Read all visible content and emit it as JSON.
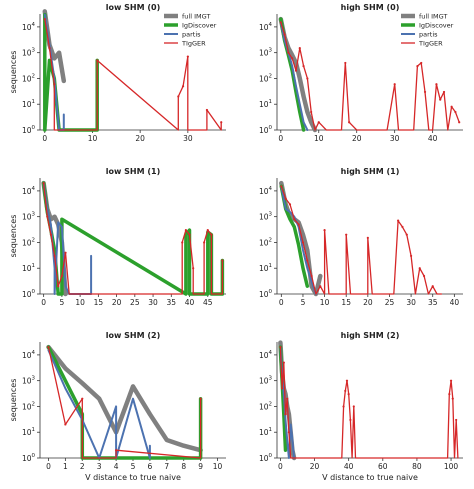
{
  "colors": {
    "full IMGT": "#808080",
    "IgDiscover": "#2ca02c",
    "partis": "#4c72b0",
    "TIgGER": "#d62728",
    "axis": "#333333",
    "background": "#ffffff"
  },
  "figure": {
    "xlabel": "V distance to true naive",
    "ylabel": "sequences",
    "legend_entries": [
      "full IMGT",
      "IgDiscover",
      "partis",
      "TIgGER"
    ]
  },
  "chart_data": [
    {
      "type": "line",
      "title": "low SHM (0)",
      "xlabel": "",
      "ylabel": "sequences",
      "xlim": [
        -1,
        38
      ],
      "ylim_exp": [
        0,
        4.5
      ],
      "xticks": [
        0,
        10,
        20,
        30
      ],
      "yticks": [
        "10^0",
        "10^1",
        "10^2",
        "10^3",
        "10^4"
      ],
      "yscale": "log",
      "legend": "top-right",
      "series": [
        {
          "name": "full IMGT",
          "x": [
            0,
            1,
            2,
            3,
            4
          ],
          "y": [
            40000,
            2000,
            600,
            1000,
            80
          ]
        },
        {
          "name": "IgDiscover",
          "x": [
            0,
            0,
            1,
            2,
            3,
            11,
            11
          ],
          "y": [
            30000,
            1,
            500,
            100,
            1,
            1,
            500
          ]
        },
        {
          "name": "partis",
          "x": [
            0,
            1,
            2,
            3,
            3,
            4,
            4
          ],
          "y": [
            30000,
            2000,
            100,
            1,
            1,
            1,
            4
          ]
        },
        {
          "name": "TIgGER",
          "x": [
            0,
            1,
            2,
            2,
            11,
            11,
            28,
            28,
            29,
            30,
            30,
            34,
            34,
            37,
            37
          ],
          "y": [
            20000,
            1500,
            60,
            1,
            1,
            500,
            1,
            20,
            50,
            700,
            1,
            1,
            6,
            1,
            2
          ]
        }
      ]
    },
    {
      "type": "line",
      "title": "high SHM (0)",
      "xlabel": "",
      "ylabel": "",
      "xlim": [
        -1,
        48
      ],
      "ylim_exp": [
        0,
        4.5
      ],
      "xticks": [
        0,
        10,
        20,
        30,
        40
      ],
      "yticks": [
        "10^0",
        "10^1",
        "10^2",
        "10^3",
        "10^4"
      ],
      "yscale": "log",
      "legend": "top-right",
      "series": [
        {
          "name": "full IMGT",
          "x": [
            0,
            1,
            2,
            3,
            4,
            5,
            6,
            7,
            8,
            9
          ],
          "y": [
            20000,
            4000,
            1500,
            800,
            400,
            100,
            20,
            5,
            2,
            1
          ]
        },
        {
          "name": "IgDiscover",
          "x": [
            0,
            1,
            2,
            3,
            4,
            5,
            6
          ],
          "y": [
            20000,
            3000,
            800,
            200,
            30,
            5,
            1
          ]
        },
        {
          "name": "partis",
          "x": [
            0,
            1,
            2,
            3,
            4,
            5,
            6,
            7
          ],
          "y": [
            15000,
            3000,
            1000,
            300,
            50,
            10,
            2,
            1
          ]
        },
        {
          "name": "TIgGER",
          "x": [
            0,
            1,
            2,
            3,
            4,
            5,
            6,
            7,
            8,
            9,
            10,
            12,
            13,
            14,
            16,
            17,
            18,
            20,
            22,
            25,
            28,
            30,
            31,
            32,
            35,
            36,
            37,
            38,
            39,
            40,
            41,
            42,
            43,
            44,
            45,
            46,
            47
          ],
          "y": [
            15000,
            5000,
            1000,
            600,
            200,
            1500,
            300,
            100,
            5,
            1,
            2,
            1,
            1,
            1,
            1,
            400,
            2,
            1,
            1,
            1,
            1,
            60,
            1,
            1,
            1,
            300,
            400,
            30,
            1,
            1,
            60,
            15,
            30,
            1,
            8,
            5,
            2
          ]
        }
      ]
    },
    {
      "type": "line",
      "title": "low SHM (1)",
      "xlabel": "",
      "ylabel": "sequences",
      "xlim": [
        -1,
        50
      ],
      "ylim_exp": [
        0,
        4.5
      ],
      "xticks": [
        0,
        5,
        10,
        15,
        20,
        25,
        30,
        35,
        40,
        45
      ],
      "yticks": [
        "10^0",
        "10^1",
        "10^2",
        "10^3",
        "10^4"
      ],
      "yscale": "log",
      "legend": "",
      "series": [
        {
          "name": "full IMGT",
          "x": [
            0,
            1,
            2,
            3,
            4,
            5,
            6
          ],
          "y": [
            20000,
            2000,
            800,
            1000,
            500,
            100,
            1
          ]
        },
        {
          "name": "IgDiscover",
          "x": [
            0,
            1,
            2,
            3,
            4,
            5,
            5,
            39,
            39,
            40,
            40,
            45,
            45,
            46,
            46,
            49,
            49
          ],
          "y": [
            20000,
            1500,
            300,
            50,
            1,
            1,
            800,
            1,
            200,
            300,
            1,
            1,
            250,
            200,
            1,
            1,
            20
          ]
        },
        {
          "name": "partis",
          "x": [
            0,
            1,
            2,
            3,
            3,
            4,
            5,
            6,
            7,
            8,
            9,
            13,
            13
          ],
          "y": [
            20000,
            2000,
            500,
            10,
            1,
            600,
            400,
            2,
            1,
            1,
            1,
            1,
            30
          ]
        },
        {
          "name": "TIgGER",
          "x": [
            0,
            1,
            2,
            3,
            4,
            5,
            6,
            7,
            7,
            30,
            30,
            38,
            38,
            39,
            40,
            41,
            41,
            44,
            44,
            45,
            46,
            46,
            49,
            49
          ],
          "y": [
            20000,
            1000,
            200,
            30,
            2,
            5,
            40,
            1,
            1,
            1,
            1,
            1,
            100,
            300,
            200,
            10,
            1,
            1,
            100,
            300,
            200,
            1,
            1,
            20
          ]
        }
      ]
    },
    {
      "type": "line",
      "title": "high SHM (1)",
      "xlabel": "",
      "ylabel": "",
      "xlim": [
        -1,
        42
      ],
      "ylim_exp": [
        0,
        4.5
      ],
      "xticks": [
        0,
        5,
        10,
        15,
        20,
        25,
        30,
        35,
        40
      ],
      "yticks": [
        "10^0",
        "10^1",
        "10^2",
        "10^3",
        "10^4"
      ],
      "yscale": "log",
      "legend": "",
      "series": [
        {
          "name": "full IMGT",
          "x": [
            0,
            1,
            2,
            3,
            4,
            5,
            6,
            7,
            8,
            9
          ],
          "y": [
            20000,
            3000,
            1000,
            800,
            600,
            200,
            50,
            2,
            1,
            5
          ]
        },
        {
          "name": "IgDiscover",
          "x": [
            0,
            1,
            2,
            3,
            4,
            5,
            6
          ],
          "y": [
            15000,
            2000,
            800,
            400,
            80,
            10,
            2
          ]
        },
        {
          "name": "partis",
          "x": [
            0,
            1,
            2,
            3,
            4,
            5,
            6,
            7,
            8
          ],
          "y": [
            15000,
            2000,
            1500,
            1000,
            400,
            50,
            10,
            3,
            1
          ]
        },
        {
          "name": "TIgGER",
          "x": [
            0,
            1,
            2,
            3,
            4,
            5,
            6,
            7,
            8,
            9,
            10,
            10,
            11,
            11,
            15,
            15,
            16,
            16,
            20,
            20,
            21,
            21,
            26,
            27,
            28,
            29,
            30,
            31,
            32,
            33,
            34,
            35,
            36,
            37
          ],
          "y": [
            15000,
            5000,
            3000,
            800,
            500,
            100,
            20,
            5,
            1,
            2,
            1,
            300,
            1,
            1,
            1,
            200,
            1,
            1,
            1,
            150,
            1,
            1,
            1,
            700,
            400,
            200,
            30,
            1,
            10,
            5,
            1,
            2,
            1,
            1
          ]
        }
      ]
    },
    {
      "type": "line",
      "title": "low SHM (2)",
      "xlabel": "V distance to true naive",
      "ylabel": "sequences",
      "xlim": [
        -0.5,
        10.5
      ],
      "ylim_exp": [
        0,
        4.5
      ],
      "xticks": [
        0,
        1,
        2,
        3,
        4,
        5,
        6,
        7,
        8,
        9,
        10
      ],
      "yticks": [
        "10^0",
        "10^1",
        "10^2",
        "10^3",
        "10^4"
      ],
      "yscale": "log",
      "legend": "",
      "series": [
        {
          "name": "full IMGT",
          "x": [
            0,
            1,
            2,
            3,
            4,
            5,
            6,
            7,
            8,
            9
          ],
          "y": [
            20000,
            3000,
            800,
            200,
            10,
            600,
            50,
            5,
            3,
            2
          ]
        },
        {
          "name": "IgDiscover",
          "x": [
            0,
            1,
            2,
            2,
            9,
            9
          ],
          "y": [
            20000,
            1000,
            50,
            1,
            1,
            200
          ]
        },
        {
          "name": "partis",
          "x": [
            0,
            1,
            2,
            3,
            4,
            4,
            5,
            6,
            6
          ],
          "y": [
            15000,
            500,
            30,
            1,
            100,
            1,
            200,
            1,
            3
          ]
        },
        {
          "name": "TIgGER",
          "x": [
            0,
            1,
            2,
            2,
            3,
            4,
            4,
            9,
            9
          ],
          "y": [
            20000,
            20,
            200,
            1,
            1,
            1,
            2,
            1,
            200
          ]
        }
      ]
    },
    {
      "type": "line",
      "title": "high SHM (2)",
      "xlabel": "V distance to true naive",
      "ylabel": "",
      "xlim": [
        -2,
        107
      ],
      "ylim_exp": [
        0,
        4.5
      ],
      "xticks": [
        0,
        20,
        40,
        60,
        80,
        100
      ],
      "yticks": [
        "10^0",
        "10^1",
        "10^2",
        "10^3",
        "10^4"
      ],
      "yscale": "log",
      "legend": "",
      "series": [
        {
          "name": "full IMGT",
          "x": [
            0,
            1,
            2,
            3,
            4,
            5,
            6,
            7,
            8
          ],
          "y": [
            30000,
            2000,
            500,
            300,
            100,
            50,
            10,
            2,
            1
          ]
        },
        {
          "name": "IgDiscover",
          "x": [
            0,
            1,
            2,
            3
          ],
          "y": [
            20000,
            1000,
            50,
            2
          ]
        },
        {
          "name": "partis",
          "x": [
            0,
            1,
            2,
            3,
            4,
            5,
            6,
            7,
            8
          ],
          "y": [
            20000,
            1500,
            300,
            30,
            5,
            1,
            20,
            5,
            1
          ]
        },
        {
          "name": "TIgGER",
          "x": [
            0,
            1,
            2,
            3,
            4,
            5,
            6,
            7,
            8,
            36,
            37,
            38,
            39,
            40,
            41,
            42,
            43,
            44,
            98,
            99,
            100,
            101,
            102,
            103,
            104
          ],
          "y": [
            20000,
            500,
            5000,
            50,
            200,
            10,
            1,
            1,
            1,
            1,
            100,
            400,
            1000,
            300,
            30,
            1,
            100,
            1,
            1,
            300,
            1000,
            200,
            1,
            30,
            1
          ]
        }
      ]
    }
  ]
}
